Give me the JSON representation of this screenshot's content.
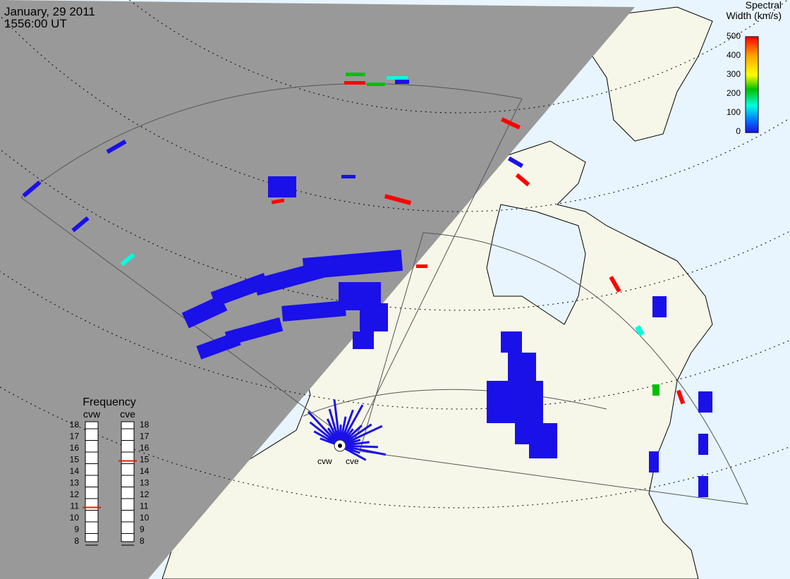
{
  "header": {
    "date": "January, 29 2011",
    "time": "1556:00 UT"
  },
  "colorbar": {
    "title_line1": "Spectral",
    "title_line2": "Width (km/s)",
    "ticks": [
      "500",
      "400",
      "300",
      "200",
      "100",
      "0"
    ],
    "colors": [
      "#ff0000",
      "#ffa500",
      "#ffff00",
      "#00c000",
      "#00ffe0",
      "#0080ff",
      "#1a10e8"
    ]
  },
  "frequency": {
    "title": "Frequency",
    "radars": [
      {
        "name": "cvw",
        "value_mhz": 11
      },
      {
        "name": "cve",
        "value_mhz": 15
      }
    ],
    "ticks": [
      "18",
      "17",
      "16",
      "15",
      "14",
      "13",
      "12",
      "11",
      "10",
      "9",
      "8"
    ]
  },
  "station_labels": {
    "cvw": "cvw",
    "cve": "cve"
  },
  "colors": {
    "night": "#999999",
    "land": "#f7f7e9",
    "ocean": "#e8f5ff",
    "scatter_low": "#1a10e8",
    "scatter_high": "#ff0000",
    "frequency_marker": "#e02000"
  }
}
